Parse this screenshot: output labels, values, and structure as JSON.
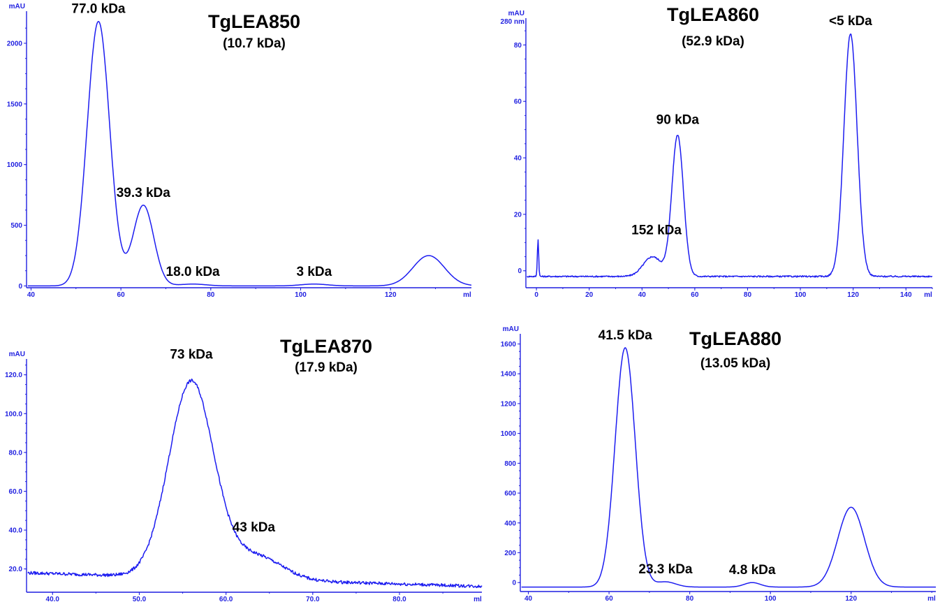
{
  "chart_data": [
    {
      "type": "line",
      "title": "TgLEA850",
      "subtitle": "(10.7 kDa)",
      "xlabel": "ml",
      "ylabel": "mAU",
      "xlim": [
        39,
        138
      ],
      "ylim": [
        -15,
        2230
      ],
      "xticks": [
        40,
        60,
        80,
        100,
        120
      ],
      "yticks": [
        0,
        500,
        1000,
        1500,
        2000
      ],
      "xtick_labels": [
        "40",
        "60",
        "80",
        "100",
        "120"
      ],
      "ytick_labels": [
        "0",
        "500",
        "1000",
        "1500",
        "2000"
      ],
      "baseline": 0,
      "peaks": [
        {
          "center": 55,
          "height": 2180,
          "width": 2.5
        },
        {
          "center": 65,
          "height": 665,
          "width": 2.3
        },
        {
          "center": 76,
          "height": 15,
          "width": 3.0
        },
        {
          "center": 103,
          "height": 15,
          "width": 3.0
        },
        {
          "center": 128.5,
          "height": 250,
          "width": 3.5
        }
      ],
      "annotations": [
        {
          "text": "77.0 kDa",
          "x": 55,
          "y": 2180
        },
        {
          "text": "39.3 kDa",
          "x": 65,
          "y": 665
        },
        {
          "text": "18.0 kDa",
          "x": 76,
          "y": 15
        },
        {
          "text": "3 kDa",
          "x": 103,
          "y": 15
        }
      ]
    },
    {
      "type": "line",
      "title": "TgLEA860",
      "subtitle": "(52.9 kDa)",
      "xlabel": "ml",
      "ylabel": "mAU\n280 nm",
      "xlim": [
        -4,
        150
      ],
      "ylim": [
        -6,
        88
      ],
      "xticks": [
        0,
        20,
        40,
        60,
        80,
        100,
        120,
        140
      ],
      "yticks": [
        0,
        20,
        40,
        60,
        80
      ],
      "xtick_labels": [
        "0",
        "20",
        "40",
        "60",
        "80",
        "100",
        "120",
        "140"
      ],
      "ytick_labels": [
        "0",
        "20",
        "40",
        "60",
        "80"
      ],
      "baseline": -2,
      "peaks": [
        {
          "center": 0.6,
          "height": 13,
          "width": 0.25
        },
        {
          "center": 44,
          "height": 7,
          "width": 3.5
        },
        {
          "center": 53.5,
          "height": 50,
          "width": 2.2
        },
        {
          "center": 119,
          "height": 86,
          "width": 2.5
        }
      ],
      "annotations": [
        {
          "text": "152 kDa",
          "x": 45.5,
          "y": 10
        },
        {
          "text": "90 kDa",
          "x": 53.5,
          "y": 49
        },
        {
          "text": "<5 kDa",
          "x": 119,
          "y": 84
        }
      ]
    },
    {
      "type": "line",
      "title": "TgLEA870",
      "subtitle": "(17.9 kDa)",
      "xlabel": "ml",
      "ylabel": "mAU",
      "xlim": [
        37,
        89.5
      ],
      "ylim": [
        8,
        126
      ],
      "xticks": [
        40,
        50,
        60,
        70,
        80
      ],
      "yticks": [
        20,
        40,
        60,
        80,
        100,
        120
      ],
      "xtick_labels": [
        "40.0",
        "50.0",
        "60.0",
        "70.0",
        "80.0"
      ],
      "ytick_labels": [
        "20.0",
        "40.0",
        "60.0",
        "80.0",
        "100.0",
        "120.0"
      ],
      "baseline_start": 18,
      "baseline_end": 11,
      "peaks": [
        {
          "center": 56,
          "height": 101,
          "width": 2.6
        },
        {
          "center": 63.5,
          "height": 12,
          "width": 3.0
        }
      ],
      "annotations": [
        {
          "text": "73 kDa",
          "x": 56,
          "y": 124
        },
        {
          "text": "43 kDa",
          "x": 63.2,
          "y": 35
        }
      ]
    },
    {
      "type": "line",
      "title": "TgLEA880",
      "subtitle": "(13.05 kDa)",
      "xlabel": "ml",
      "ylabel": "mAU",
      "xlim": [
        38,
        141
      ],
      "ylim": [
        -60,
        1640
      ],
      "xticks": [
        40,
        60,
        80,
        100,
        120
      ],
      "yticks": [
        0,
        200,
        400,
        600,
        800,
        1000,
        1200,
        1400,
        1600
      ],
      "xtick_labels": [
        "40",
        "60",
        "80",
        "100",
        "120"
      ],
      "ytick_labels": [
        "0",
        "200",
        "400",
        "600",
        "800",
        "1000",
        "1200",
        "1400",
        "1600"
      ],
      "baseline": -30,
      "peaks": [
        {
          "center": 64,
          "height": 1605,
          "width": 2.5
        },
        {
          "center": 74,
          "height": 35,
          "width": 2.5
        },
        {
          "center": 95.5,
          "height": 30,
          "width": 2.0
        },
        {
          "center": 120,
          "height": 535,
          "width": 3.3
        }
      ],
      "annotations": [
        {
          "text": "41.5 kDa",
          "x": 64,
          "y": 1575
        },
        {
          "text": "23.3 kDa",
          "x": 74,
          "y": 5
        },
        {
          "text": "4.8 kDa",
          "x": 95.5,
          "y": 0
        }
      ]
    }
  ]
}
